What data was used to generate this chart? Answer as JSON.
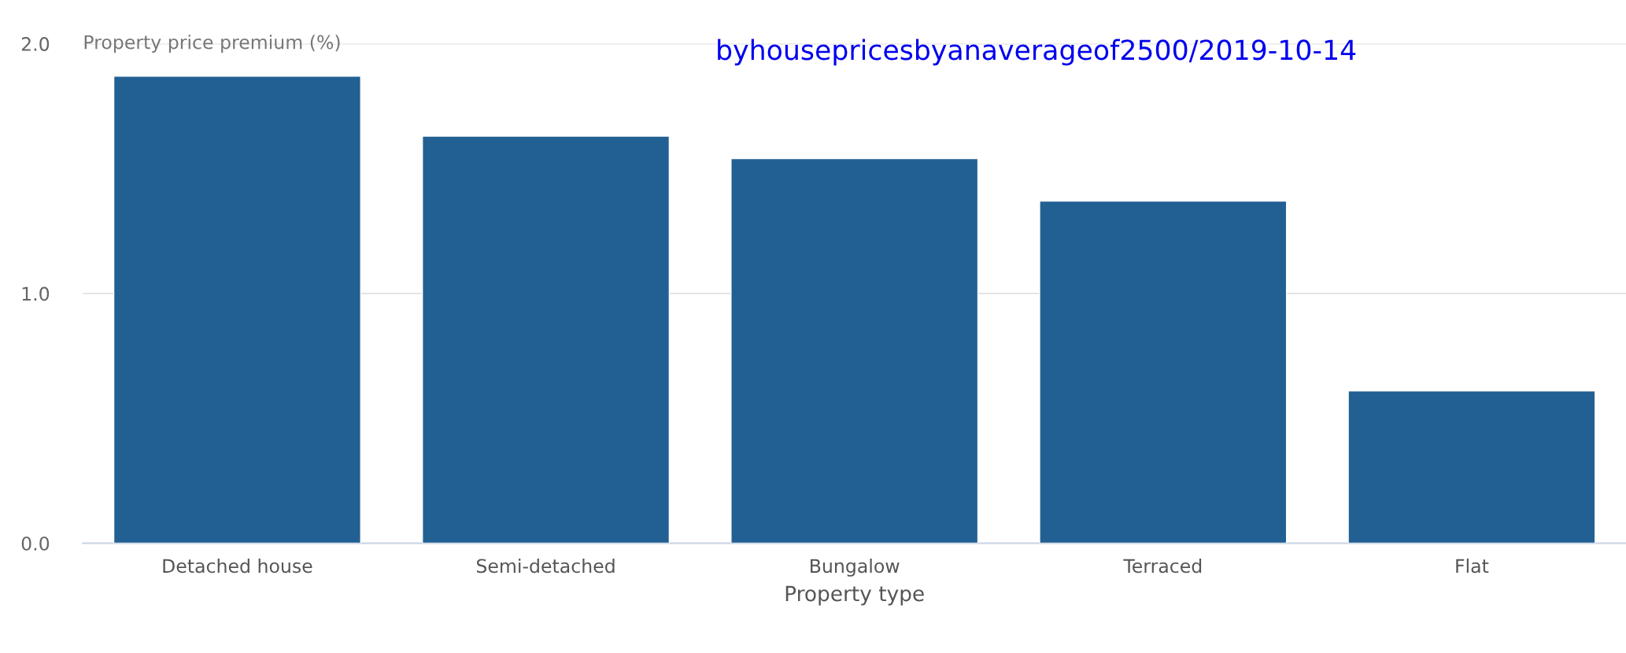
{
  "chart_data": {
    "type": "bar",
    "xlabel": "Property type",
    "ylabel": "Property price premium (%)",
    "categories": [
      "Detached house",
      "Semi-detached",
      "Bungalow",
      "Terraced",
      "Flat"
    ],
    "values": [
      1.87,
      1.63,
      1.54,
      1.37,
      0.61
    ],
    "color": "#226093",
    "ylim": [
      0,
      2.0
    ],
    "yticks": [
      {
        "value": 0,
        "label": "0.0"
      },
      {
        "value": 1,
        "label": "1.0"
      },
      {
        "value": 2,
        "label": "2.0"
      }
    ],
    "grid": "y",
    "annotations": [
      "byhousepricesbyanaverageof2500/2019-10-14"
    ]
  }
}
